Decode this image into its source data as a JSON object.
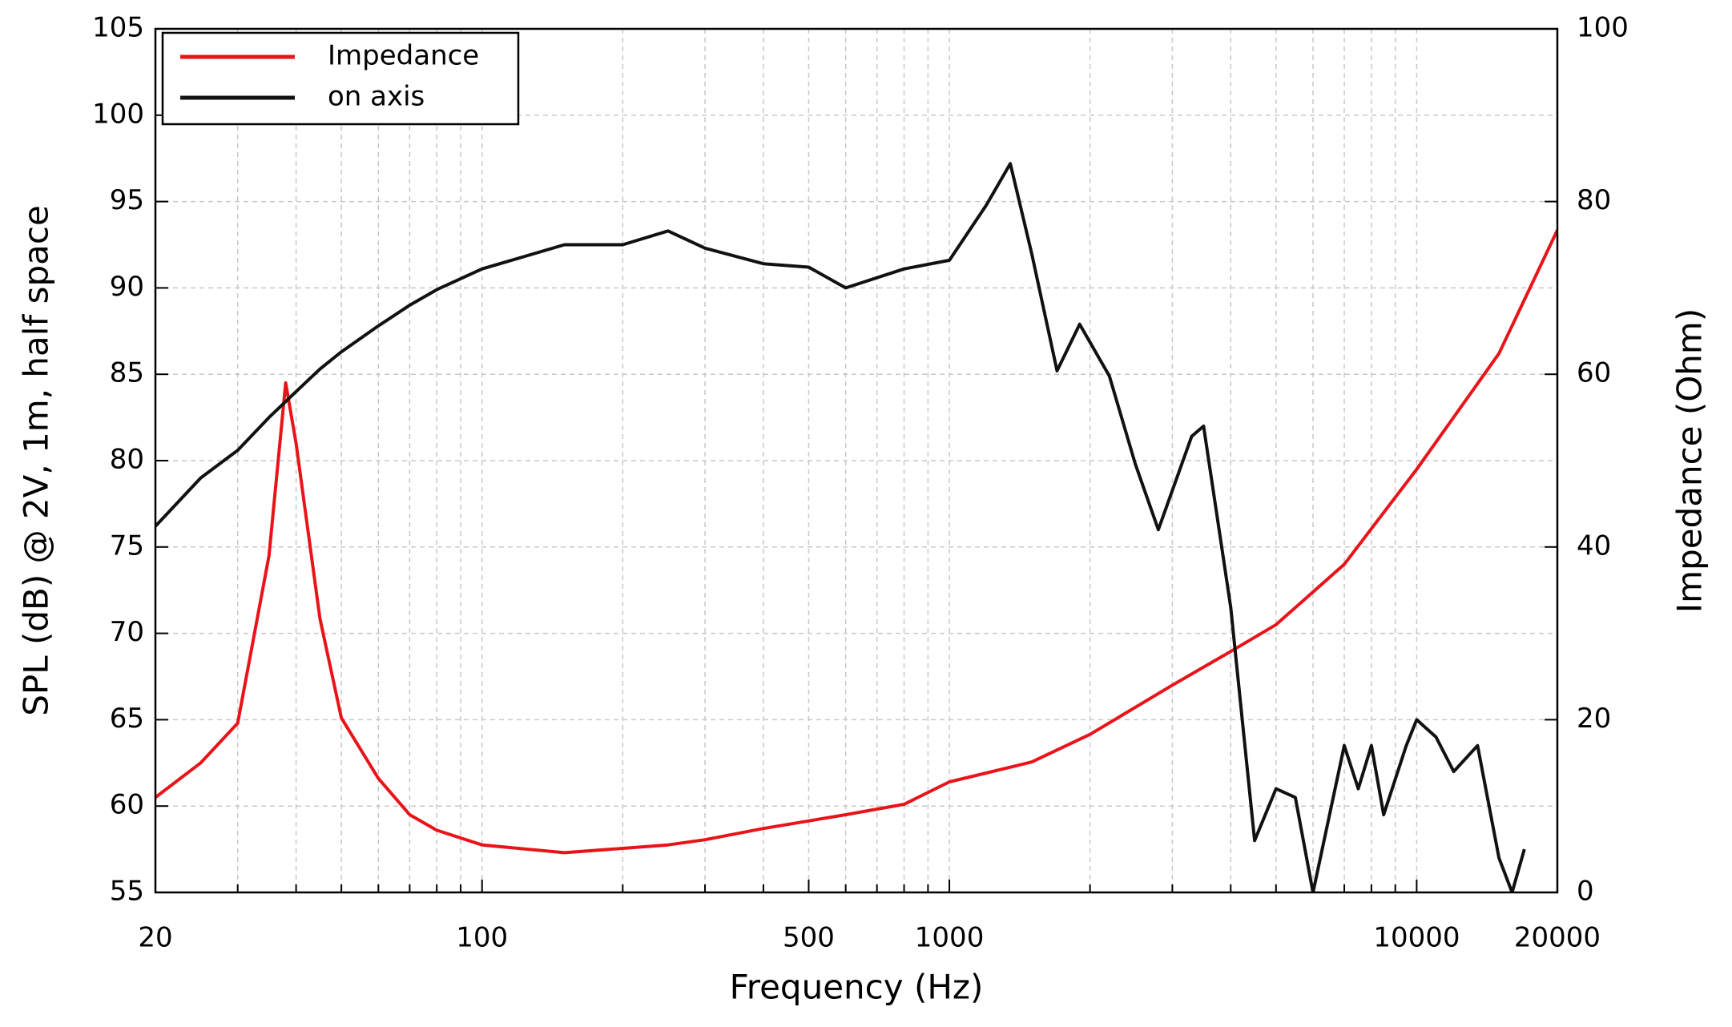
{
  "chart_data": {
    "type": "line",
    "x_label": "Frequency (Hz)",
    "y_label": "SPL (dB) @ 2V, 1m, half space",
    "y2_label": "Impedance (Ohm)",
    "xscale": "log",
    "grid": true,
    "legend": "upper left",
    "xlim": [
      20,
      20000
    ],
    "ylim": [
      55,
      105
    ],
    "y2lim": [
      0,
      100
    ],
    "xticks": [
      20,
      100,
      500,
      1000,
      10000,
      20000
    ],
    "xminorticks": [
      30,
      40,
      50,
      60,
      70,
      80,
      90,
      200,
      300,
      400,
      600,
      700,
      800,
      900,
      2000,
      3000,
      4000,
      5000,
      6000,
      7000,
      8000,
      9000
    ],
    "yticks": [
      55,
      60,
      65,
      70,
      75,
      80,
      85,
      90,
      95,
      100,
      105
    ],
    "y2ticks": [
      0,
      20,
      40,
      60,
      80,
      100
    ],
    "series": [
      {
        "name": "Impedance",
        "color": "#e8141a",
        "axis": "y2",
        "x": [
          20,
          25,
          30,
          35,
          38,
          40,
          45,
          50,
          60,
          70,
          80,
          100,
          150,
          200,
          250,
          300,
          400,
          600,
          800,
          1000,
          1500,
          2000,
          3000,
          4000,
          5000,
          7000,
          10000,
          15000,
          20000
        ],
        "values": [
          11,
          15,
          19.6,
          39,
          59,
          52,
          31.7,
          20.2,
          13.2,
          9,
          7.2,
          5.5,
          4.6,
          5.1,
          5.5,
          6.1,
          7.4,
          9,
          10.2,
          12.8,
          15.1,
          18.3,
          24,
          27.9,
          31,
          38,
          49,
          62.4,
          76.7
        ]
      },
      {
        "name": "on axis",
        "color": "#111111",
        "x": [
          20,
          25,
          30,
          35,
          40,
          45,
          50,
          60,
          70,
          80,
          100,
          150,
          200,
          250,
          300,
          400,
          500,
          600,
          800,
          1000,
          1200,
          1350,
          1500,
          1700,
          1900,
          2200,
          2500,
          2800,
          3300,
          3500,
          4000,
          4500,
          5000,
          5500,
          6000,
          7000,
          7500,
          8000,
          8500,
          9500,
          10000,
          11000,
          12000,
          13500,
          15000,
          16000,
          17000
        ],
        "values": [
          76.2,
          79,
          80.6,
          82.5,
          84,
          85.3,
          86.3,
          87.8,
          89,
          89.9,
          91.1,
          92.5,
          92.5,
          93.3,
          92.3,
          91.4,
          91.2,
          90,
          91.1,
          91.6,
          94.8,
          97.2,
          92,
          85.2,
          87.9,
          84.9,
          79.8,
          76,
          81.4,
          82,
          71.5,
          58,
          61,
          60.5,
          55,
          63.5,
          61,
          63.5,
          59.5,
          63.5,
          65,
          64,
          62,
          63.5,
          57,
          55,
          57.5
        ]
      }
    ]
  }
}
